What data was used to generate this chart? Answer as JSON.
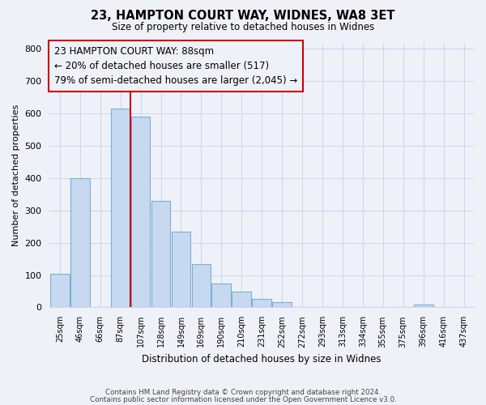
{
  "title": "23, HAMPTON COURT WAY, WIDNES, WA8 3ET",
  "subtitle": "Size of property relative to detached houses in Widnes",
  "xlabel": "Distribution of detached houses by size in Widnes",
  "ylabel": "Number of detached properties",
  "bar_labels": [
    "25sqm",
    "46sqm",
    "66sqm",
    "87sqm",
    "107sqm",
    "128sqm",
    "149sqm",
    "169sqm",
    "190sqm",
    "210sqm",
    "231sqm",
    "252sqm",
    "272sqm",
    "293sqm",
    "313sqm",
    "334sqm",
    "355sqm",
    "375sqm",
    "396sqm",
    "416sqm",
    "437sqm"
  ],
  "bar_values": [
    105,
    400,
    0,
    615,
    590,
    330,
    235,
    135,
    75,
    48,
    25,
    15,
    0,
    0,
    0,
    0,
    0,
    0,
    8,
    0,
    0
  ],
  "bar_color": "#c6d9f0",
  "bar_edge_color": "#7bafd4",
  "property_line_index": 3,
  "property_line_color": "#cc0000",
  "ylim": [
    0,
    820
  ],
  "yticks": [
    0,
    100,
    200,
    300,
    400,
    500,
    600,
    700,
    800
  ],
  "annotation_title": "23 HAMPTON COURT WAY: 88sqm",
  "annotation_line1": "← 20% of detached houses are smaller (517)",
  "annotation_line2": "79% of semi-detached houses are larger (2,045) →",
  "footer1": "Contains HM Land Registry data © Crown copyright and database right 2024.",
  "footer2": "Contains public sector information licensed under the Open Government Licence v3.0.",
  "bg_color": "#eef2f8",
  "grid_color": "#d0d8e8",
  "ann_box_color": "#eef2f8",
  "ann_edge_color": "#cc0000"
}
